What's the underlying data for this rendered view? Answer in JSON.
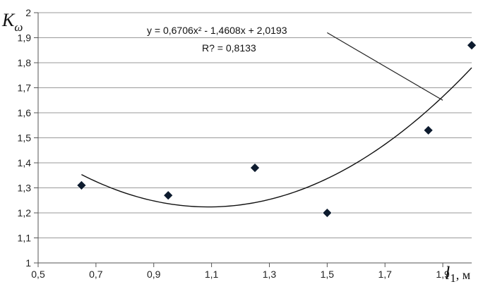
{
  "chart_data": {
    "type": "scatter",
    "title": "",
    "ylabel": {
      "symbol": "K",
      "subscript": "ω"
    },
    "xlabel": {
      "symbol": "l",
      "subscript": "1",
      "unit": ", м"
    },
    "xlim": [
      0.5,
      2.0
    ],
    "ylim": [
      1.0,
      2.0
    ],
    "xticks": [
      0.5,
      0.7,
      0.9,
      1.1,
      1.3,
      1.5,
      1.7,
      1.9
    ],
    "xtick_labels": [
      "0,5",
      "0,7",
      "0,9",
      "1,1",
      "1,3",
      "1,5",
      "1,7",
      "1,9"
    ],
    "yticks": [
      1.0,
      1.1,
      1.2,
      1.3,
      1.4,
      1.5,
      1.6,
      1.7,
      1.8,
      1.9,
      2.0
    ],
    "ytick_labels": [
      "1",
      "1,1",
      "1,2",
      "1,3",
      "1,4",
      "1,5",
      "1,6",
      "1,7",
      "1,8",
      "1,9",
      "2"
    ],
    "grid": "horizontal",
    "series": [
      {
        "marker": "diamond",
        "color": "#0d1b2e",
        "points": [
          {
            "x": 0.65,
            "y": 1.31
          },
          {
            "x": 0.95,
            "y": 1.27
          },
          {
            "x": 1.25,
            "y": 1.38
          },
          {
            "x": 1.5,
            "y": 1.2
          },
          {
            "x": 1.85,
            "y": 1.53
          },
          {
            "x": 2.0,
            "y": 1.87
          }
        ]
      }
    ],
    "trendline": {
      "kind": "polynomial",
      "coefficients": [
        0.6706,
        -1.4608,
        2.0193
      ],
      "x_range": [
        0.65,
        2.0
      ],
      "color": "#111111"
    },
    "annotations": {
      "equation": "y = 0,6706x² - 1,4608x + 2,0193",
      "r_squared": "R? = 0,8133"
    },
    "leader_line": {
      "from": {
        "x": 1.5,
        "y": 1.92
      },
      "to": {
        "x": 1.9,
        "y": 1.65
      }
    }
  }
}
